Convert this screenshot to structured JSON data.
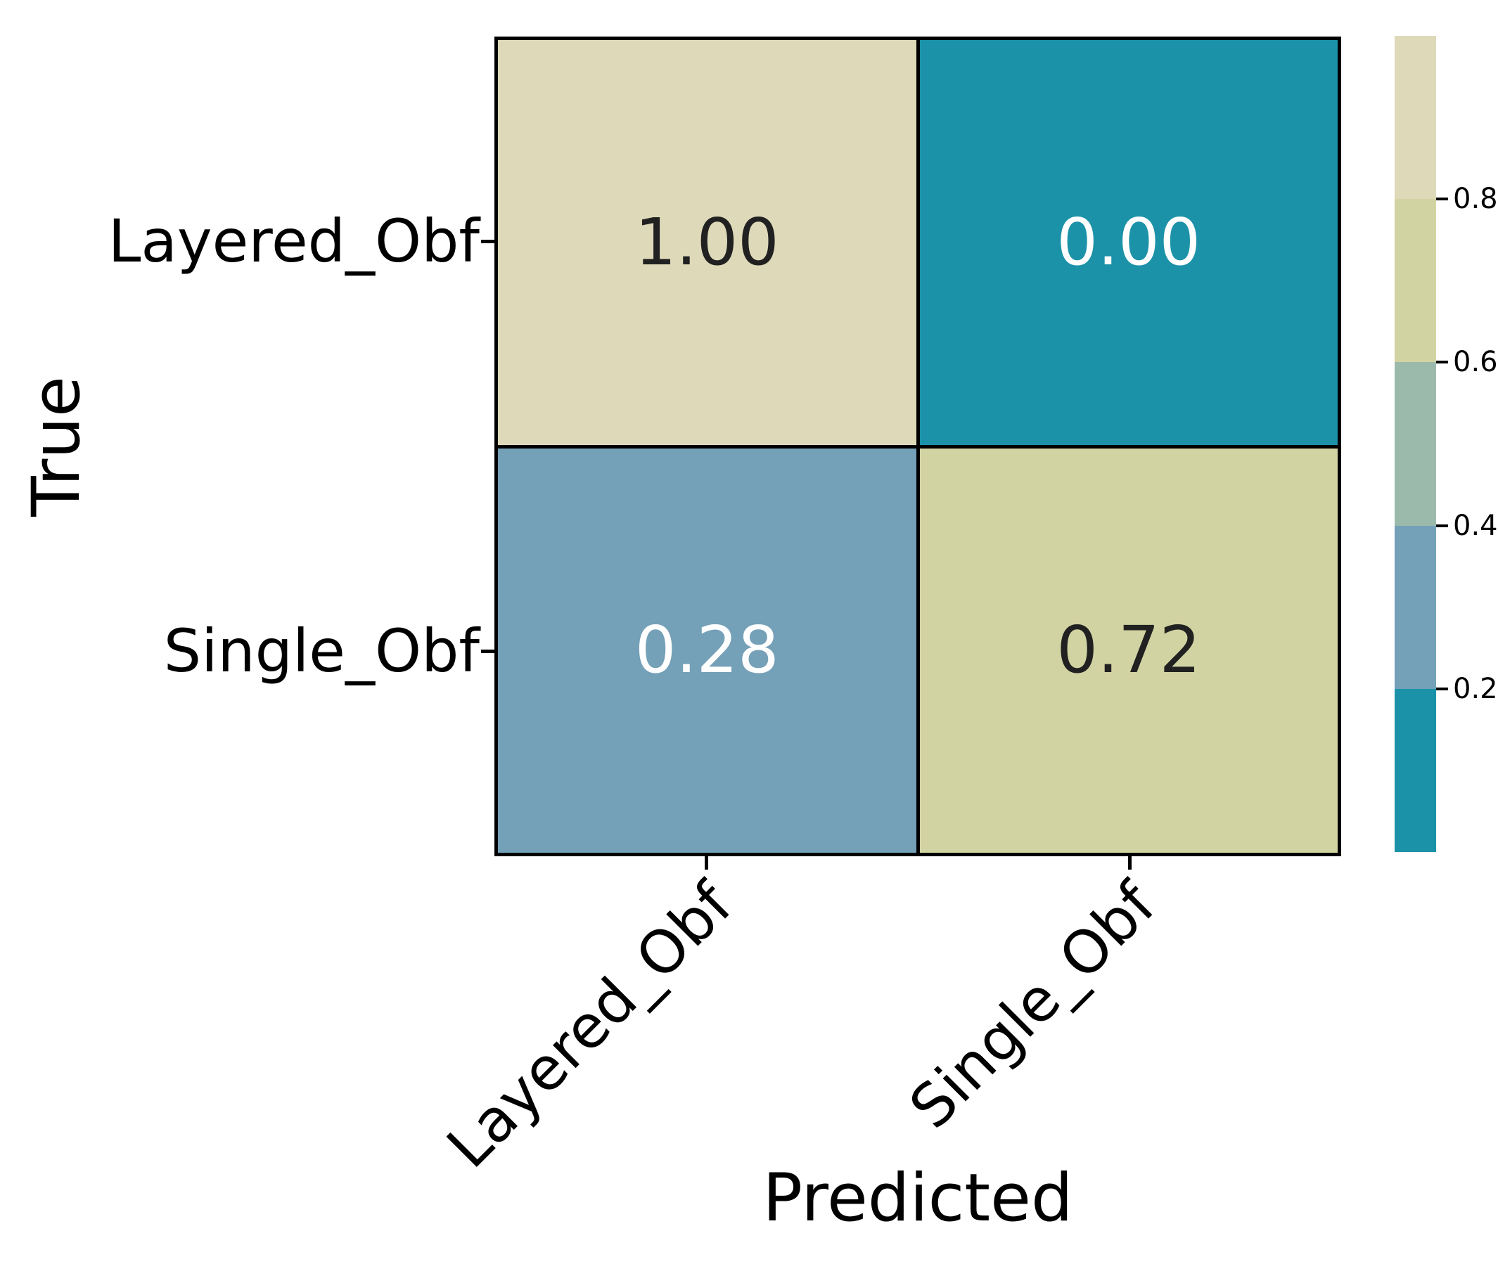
{
  "chart_data": {
    "type": "heatmap",
    "title": "",
    "xlabel": "Predicted",
    "ylabel": "True",
    "x_categories": [
      "Layered_Obf",
      "Single_Obf"
    ],
    "y_categories": [
      "Layered_Obf",
      "Single_Obf"
    ],
    "values": [
      [
        1.0,
        0.0
      ],
      [
        0.28,
        0.72
      ]
    ],
    "cell_labels": [
      [
        "1.00",
        "0.00"
      ],
      [
        "0.28",
        "0.72"
      ]
    ],
    "cell_colors": [
      [
        "#ded9b8",
        "#1b92a8"
      ],
      [
        "#74a0b8",
        "#d2d3a2"
      ]
    ],
    "cell_text_colors": [
      [
        "#212121",
        "#ffffff"
      ],
      [
        "#ffffff",
        "#212121"
      ]
    ],
    "value_range": [
      0,
      1
    ],
    "x_tick_rotation_deg": 45,
    "grid_line_color": "#000000",
    "legend_position": "right",
    "colorbar": {
      "tick_labels": [
        "0.2",
        "0.4",
        "0.6",
        "0.8"
      ],
      "band_boundaries": [
        0,
        0.2,
        0.4,
        0.6,
        0.8,
        1.0
      ],
      "band_colors_bottom_to_top": [
        "#1b92a8",
        "#74a0b8",
        "#9cbaac",
        "#d2d3a2",
        "#ded9b8"
      ]
    }
  }
}
